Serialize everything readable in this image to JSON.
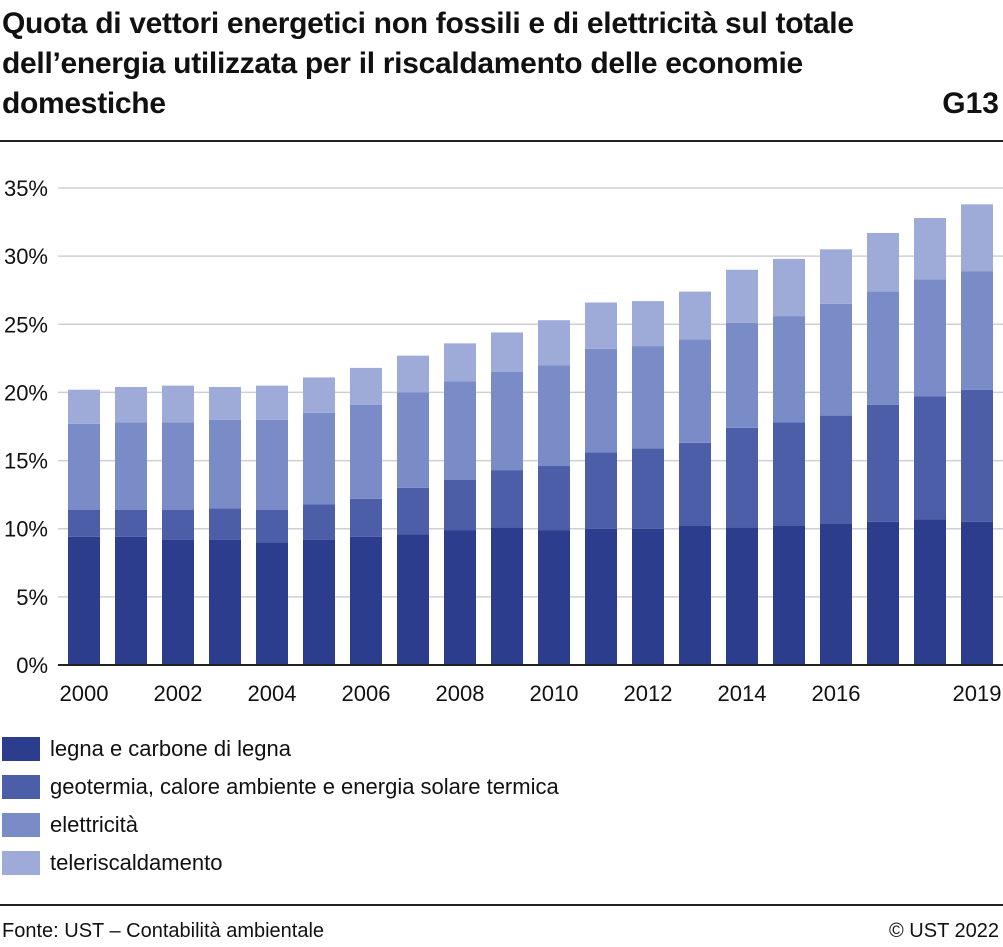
{
  "header": {
    "title": "Quota di vettori energetici non fossili e di elettricità sul totale dell’energia utilizzata per il riscaldamento delle economie domestiche",
    "code": "G13"
  },
  "footer": {
    "source": "Fonte: UST – Contabilità ambientale",
    "copyright": "© UST 2022"
  },
  "chart_data": {
    "type": "bar",
    "stacked": true,
    "categories": [
      "2000",
      "2001",
      "2002",
      "2003",
      "2004",
      "2005",
      "2006",
      "2007",
      "2008",
      "2009",
      "2010",
      "2011",
      "2012",
      "2013",
      "2014",
      "2015",
      "2016",
      "2017",
      "2018",
      "2019"
    ],
    "x_tick_labels": [
      "2000",
      "",
      "2002",
      "",
      "2004",
      "",
      "2006",
      "",
      "2008",
      "",
      "2010",
      "",
      "2012",
      "",
      "2014",
      "",
      "2016",
      "",
      "",
      "2019"
    ],
    "y_ticks": [
      0,
      5,
      10,
      15,
      20,
      25,
      30,
      35
    ],
    "y_tick_labels": [
      "0%",
      "5%",
      "10%",
      "15%",
      "20%",
      "25%",
      "30%",
      "35%"
    ],
    "ylim": [
      0,
      35
    ],
    "grid": true,
    "legend_position": "bottom",
    "series": [
      {
        "name": "legna e carbone di legna",
        "color": "#2b3d8c",
        "values": [
          9.4,
          9.4,
          9.2,
          9.2,
          9.0,
          9.2,
          9.4,
          9.6,
          9.9,
          10.1,
          9.9,
          10.0,
          10.0,
          10.2,
          10.1,
          10.2,
          10.4,
          10.5,
          10.7,
          10.5
        ]
      },
      {
        "name": "geotermia, calore ambiente e energia solare termica",
        "color": "#4c5ea8",
        "values": [
          2.0,
          2.0,
          2.2,
          2.3,
          2.4,
          2.6,
          2.8,
          3.4,
          3.7,
          4.2,
          4.7,
          5.6,
          5.9,
          6.1,
          7.3,
          7.6,
          7.9,
          8.6,
          9.0,
          9.7
        ]
      },
      {
        "name": "elettricità",
        "color": "#7a8cc8",
        "values": [
          6.3,
          6.4,
          6.4,
          6.5,
          6.6,
          6.7,
          6.9,
          7.0,
          7.2,
          7.2,
          7.4,
          7.6,
          7.5,
          7.6,
          7.7,
          7.8,
          8.2,
          8.3,
          8.6,
          8.7
        ]
      },
      {
        "name": "teleriscaldamento",
        "color": "#9eabd8",
        "values": [
          2.5,
          2.6,
          2.7,
          2.4,
          2.5,
          2.6,
          2.7,
          2.7,
          2.8,
          2.9,
          3.3,
          3.4,
          3.3,
          3.5,
          3.9,
          4.2,
          4.0,
          4.3,
          4.5,
          4.9
        ]
      }
    ]
  }
}
